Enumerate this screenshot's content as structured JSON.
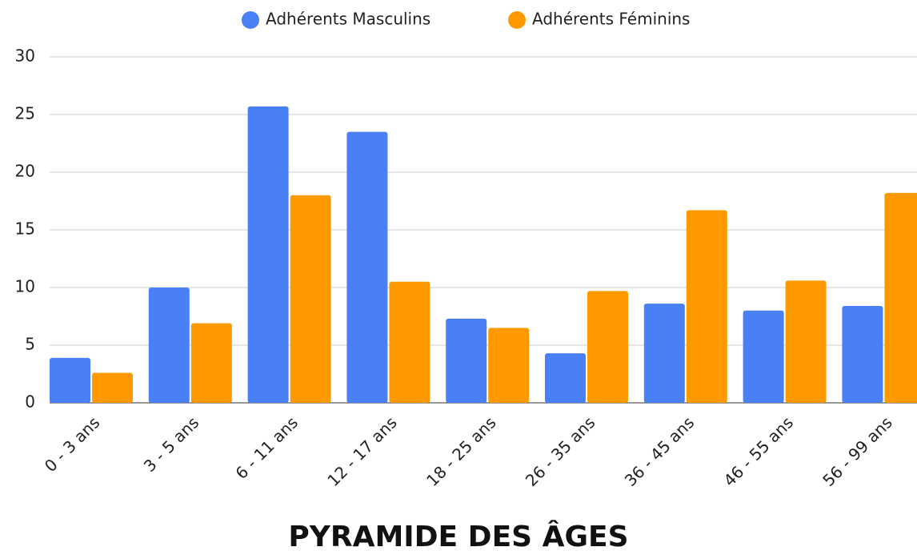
{
  "chart_data": {
    "type": "bar",
    "title": "PYRAMIDE DES ÂGES",
    "categories": [
      "0 - 3 ans",
      "3 - 5 ans",
      "6 - 11 ans",
      "12 - 17 ans",
      "18 - 25 ans",
      "26 - 35 ans",
      "36 - 45 ans",
      "46 - 55 ans",
      "56 - 99 ans"
    ],
    "series": [
      {
        "name": "Adhérents Masculins",
        "color": "#4a80f5",
        "values": [
          3.9,
          10,
          25.7,
          23.5,
          7.3,
          4.3,
          8.6,
          8.0,
          8.4
        ]
      },
      {
        "name": "Adhérents Féminins",
        "color": "#ff9900",
        "values": [
          2.6,
          6.9,
          18.0,
          10.5,
          6.5,
          9.7,
          16.7,
          10.6,
          18.2
        ]
      }
    ],
    "ylim": [
      0,
      30
    ],
    "yticks": [
      0,
      5,
      10,
      15,
      20,
      25,
      30
    ],
    "grid": true,
    "legend": "top"
  }
}
